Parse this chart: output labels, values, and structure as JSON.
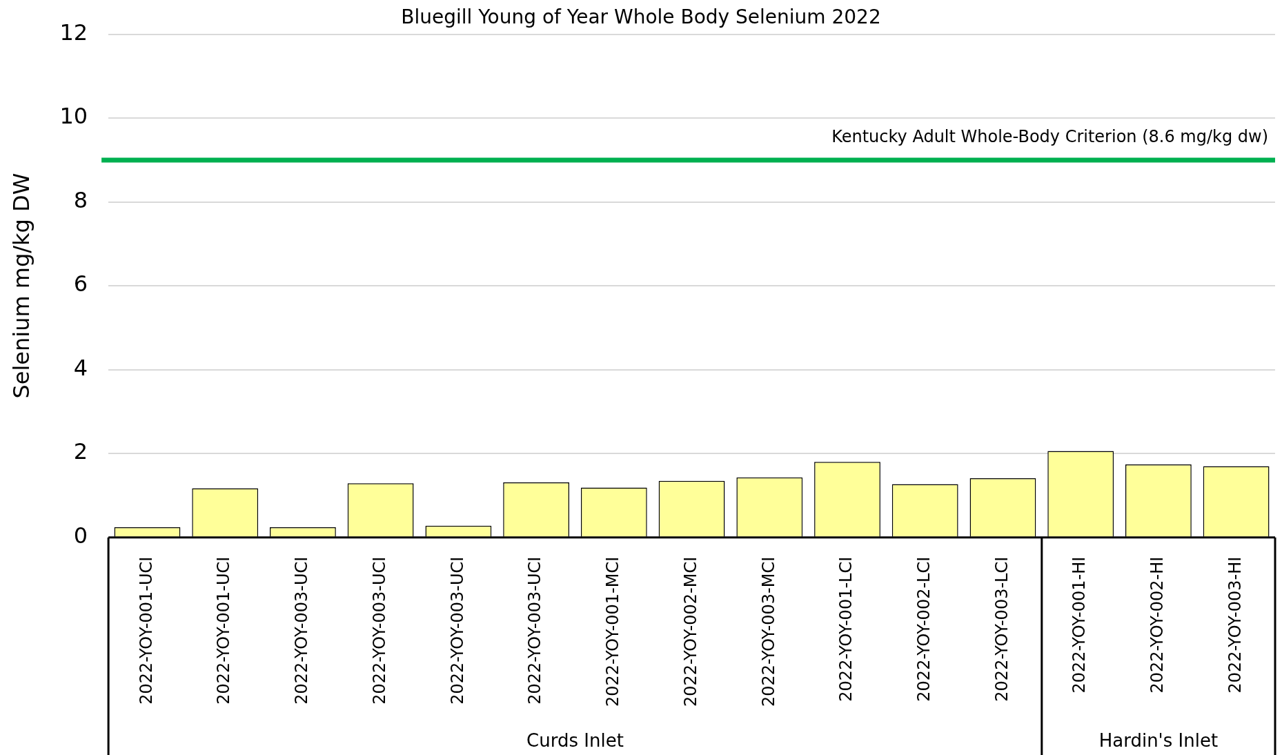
{
  "chart_data": {
    "type": "bar",
    "title": "Bluegill Young of Year Whole Body Selenium 2022",
    "ylabel": "Selenium mg/kg DW",
    "categories": [
      "2022-YOY-001-UCI",
      "2022-YOY-001-UCI",
      "2022-YOY-003-UCI",
      "2022-YOY-003-UCI",
      "2022-YOY-003-UCI",
      "2022-YOY-003-UCI",
      "2022-YOY-001-MCI",
      "2022-YOY-002-MCI",
      "2022-YOY-003-MCI",
      "2022-YOY-001-LCI",
      "2022-YOY-002-LCI",
      "2022-YOY-003-LCI",
      "2022-YOY-001-HI",
      "2022-YOY-002-HI",
      "2022-YOY-003-HI"
    ],
    "values": [
      0.24,
      1.17,
      0.24,
      1.29,
      0.28,
      1.31,
      1.19,
      1.35,
      1.43,
      1.8,
      1.27,
      1.41,
      2.06,
      1.74,
      1.7
    ],
    "color": "#ffff99",
    "ylim": [
      0,
      12
    ],
    "yticks": [
      0,
      2,
      4,
      6,
      8,
      10,
      12
    ],
    "grid": "y",
    "legend": false,
    "ref_lines": [
      {
        "axis": "y",
        "value": 9,
        "label": "Kentucky Adult Whole-Body Criterion (8.6 mg/kg dw)",
        "color": "#00b050"
      }
    ],
    "annotations": [
      "Curds Inlet",
      "Hardin's Inlet"
    ]
  }
}
